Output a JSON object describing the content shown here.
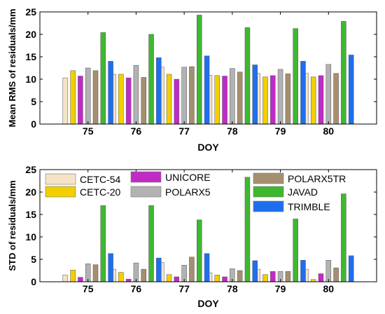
{
  "chart_data": [
    {
      "type": "bar",
      "title": "",
      "xlabel": "DOY",
      "ylabel": "Mean RMS of residuals/mm",
      "categories": [
        "75",
        "76",
        "77",
        "78",
        "79",
        "80"
      ],
      "ylim": [
        0,
        25
      ],
      "yticks": [
        0,
        5,
        10,
        15,
        20,
        25
      ],
      "grid": false,
      "legend": "none",
      "series": [
        {
          "name": "CETC-54",
          "color": "#f6e3c5",
          "values": [
            10.3,
            11.1,
            12.7,
            10.9,
            11.3,
            11.3
          ]
        },
        {
          "name": "CETC-20",
          "color": "#f2cf00",
          "values": [
            11.9,
            11.1,
            11.1,
            10.8,
            10.5,
            10.5
          ]
        },
        {
          "name": "UNICORE",
          "color": "#c02bc6",
          "values": [
            10.7,
            10.3,
            10.0,
            10.7,
            10.8,
            10.8
          ]
        },
        {
          "name": "POLARX5",
          "color": "#b2b2b2",
          "values": [
            12.5,
            13.1,
            12.7,
            12.4,
            12.2,
            13.3
          ]
        },
        {
          "name": "POLARX5TR",
          "color": "#a58f6f",
          "values": [
            11.9,
            10.4,
            12.8,
            11.6,
            11.2,
            11.3
          ]
        },
        {
          "name": "JAVAD",
          "color": "#3fb830",
          "values": [
            20.4,
            20.0,
            24.3,
            21.5,
            21.3,
            22.9
          ]
        },
        {
          "name": "TRIMBLE",
          "color": "#1e6ff0",
          "values": [
            14.0,
            14.8,
            15.2,
            13.2,
            14.0,
            15.4
          ]
        }
      ]
    },
    {
      "type": "bar",
      "title": "",
      "xlabel": "DOY",
      "ylabel": "STD of residuals/mm",
      "categories": [
        "75",
        "76",
        "77",
        "78",
        "79",
        "80"
      ],
      "ylim": [
        0,
        25
      ],
      "yticks": [
        0,
        5,
        10,
        15,
        20,
        25
      ],
      "grid": false,
      "legend": "top",
      "series": [
        {
          "name": "CETC-54",
          "color": "#f6e3c5",
          "values": [
            1.5,
            2.8,
            4.3,
            2.0,
            2.8,
            2.8
          ]
        },
        {
          "name": "CETC-20",
          "color": "#f2cf00",
          "values": [
            2.6,
            2.1,
            1.6,
            1.5,
            1.6,
            0.5
          ]
        },
        {
          "name": "UNICORE",
          "color": "#c02bc6",
          "values": [
            1.0,
            0.6,
            1.1,
            1.1,
            2.3,
            1.8
          ]
        },
        {
          "name": "POLARX5",
          "color": "#b2b2b2",
          "values": [
            4.0,
            4.2,
            3.7,
            2.9,
            2.3,
            4.8
          ]
        },
        {
          "name": "POLARX5TR",
          "color": "#a58f6f",
          "values": [
            3.8,
            2.8,
            5.5,
            2.5,
            2.3,
            3.1
          ]
        },
        {
          "name": "JAVAD",
          "color": "#3fb830",
          "values": [
            17.0,
            17.0,
            13.8,
            23.3,
            14.0,
            19.6
          ]
        },
        {
          "name": "TRIMBLE",
          "color": "#1e6ff0",
          "values": [
            6.3,
            5.3,
            6.3,
            4.7,
            4.8,
            5.8
          ]
        }
      ]
    }
  ]
}
